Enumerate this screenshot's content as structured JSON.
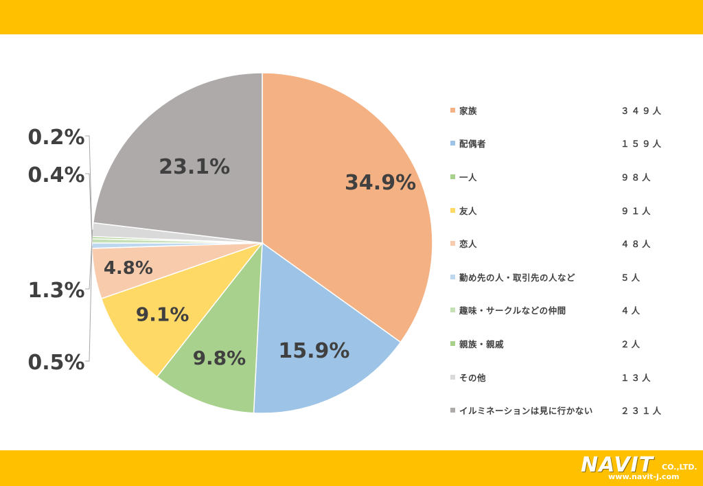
{
  "chart_data": {
    "type": "pie",
    "slices": [
      {
        "label": "家族",
        "count": "３４９人",
        "percent": 34.9,
        "percent_label": "34.9%",
        "color": "#f4b183"
      },
      {
        "label": "配偶者",
        "count": "１５９人",
        "percent": 15.9,
        "percent_label": "15.9%",
        "color": "#9dc3e6"
      },
      {
        "label": "一人",
        "count": "９８人",
        "percent": 9.8,
        "percent_label": "9.8%",
        "color": "#a9d18e"
      },
      {
        "label": "友人",
        "count": "９１人",
        "percent": 9.1,
        "percent_label": "9.1%",
        "color": "#ffd966"
      },
      {
        "label": "恋人",
        "count": "４８人",
        "percent": 4.8,
        "percent_label": "4.8%",
        "color": "#f8cbad"
      },
      {
        "label": "勤め先の人・取引先の人など",
        "count": "５人",
        "percent": 0.5,
        "percent_label": "0.5%",
        "color": "#bdd7ee"
      },
      {
        "label": "趣味・サークルなどの仲間",
        "count": "４人",
        "percent": 0.4,
        "percent_label": "",
        "color": "#c5e0b4"
      },
      {
        "label": "親族・親戚",
        "count": "２人",
        "percent": 0.2,
        "percent_label": "",
        "color": "#a9d18e"
      },
      {
        "label": "その他",
        "count": "１３人",
        "percent": 1.3,
        "percent_label": "1.3%",
        "color": "#d9d9d9"
      },
      {
        "label": "イルミネーションは見に行かない",
        "count": "２３１人",
        "percent": 23.1,
        "percent_label": "23.1%",
        "color": "#aeaaaa"
      }
    ],
    "outer_labels": {
      "top": "0.2%",
      "second": "0.4%"
    },
    "legend_position": "right"
  },
  "header_band_color": "#ffc000",
  "footer_band_color": "#ffc000",
  "logo": {
    "main": "NAVIT",
    "company": "CO.,LTD.",
    "url": "www.navit-j.com"
  }
}
